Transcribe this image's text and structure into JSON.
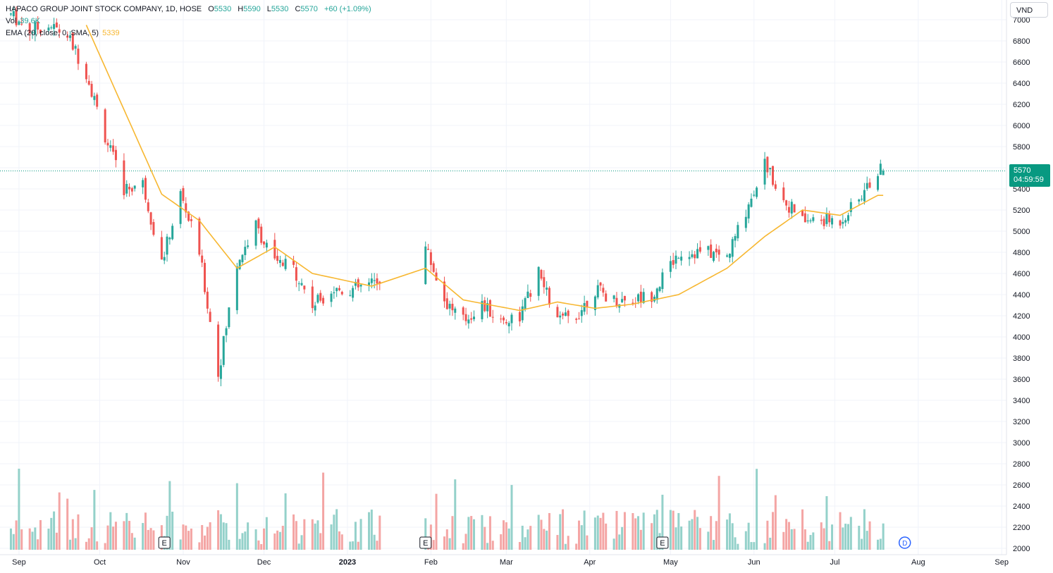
{
  "legend": {
    "symbol_title": "HAPACO GROUP JOINT STOCK COMPANY, 1D, HOSE",
    "o_label": "O",
    "o_value": "5530",
    "h_label": "H",
    "h_value": "5590",
    "l_label": "L",
    "l_value": "5530",
    "c_label": "C",
    "c_value": "5570",
    "change": "+60 (+1.09%)",
    "vol_label": "Vol",
    "vol_value": "39.6K",
    "ema_label": "EMA (20, close, 0, SMA, 5)",
    "ema_value": "5339"
  },
  "currency_button": "VND",
  "last_price": {
    "price": "5570",
    "countdown": "04:59:59"
  },
  "event_markers": [
    "E",
    "E",
    "E"
  ],
  "dividend_marker": "D",
  "colors": {
    "up": "#26a69a",
    "down": "#ef5350",
    "ema": "#f7b731",
    "vol_up": "#94d1ca",
    "vol_down": "#f4a5a4",
    "tag": "#089981"
  },
  "chart_data": {
    "type": "candlestick",
    "y_axis_ticks": [
      2000,
      2200,
      2400,
      2600,
      2800,
      3000,
      3200,
      3400,
      3600,
      3800,
      4000,
      4200,
      4400,
      4600,
      4800,
      5000,
      5200,
      5400,
      5600,
      5800,
      6000,
      6200,
      6400,
      6600,
      6800,
      7000
    ],
    "x_axis_labels": [
      "Sep",
      "Oct",
      "Nov",
      "Dec",
      "2023",
      "Feb",
      "Mar",
      "Apr",
      "May",
      "Jun",
      "Jul",
      "Aug",
      "Sep"
    ],
    "ylim": [
      1960,
      7110
    ],
    "grid": true,
    "price_series_approx": [
      [
        "2022-08-29",
        7050
      ],
      [
        "2022-09-05",
        6900
      ],
      [
        "2022-09-12",
        6950
      ],
      [
        "2022-09-19",
        6850
      ],
      [
        "2022-09-26",
        6500
      ],
      [
        "2022-10-03",
        5900
      ],
      [
        "2022-10-10",
        5400
      ],
      [
        "2022-10-17",
        5450
      ],
      [
        "2022-10-24",
        4700
      ],
      [
        "2022-10-31",
        5350
      ],
      [
        "2022-11-07",
        4800
      ],
      [
        "2022-11-14",
        3650
      ],
      [
        "2022-11-21",
        4700
      ],
      [
        "2022-11-28",
        5050
      ],
      [
        "2022-12-05",
        4700
      ],
      [
        "2022-12-12",
        4650
      ],
      [
        "2022-12-19",
        4300
      ],
      [
        "2022-12-26",
        4450
      ],
      [
        "2023-01-03",
        4450
      ],
      [
        "2023-01-10",
        4500
      ],
      [
        "2023-01-30",
        4850
      ],
      [
        "2023-02-06",
        4350
      ],
      [
        "2023-02-13",
        4150
      ],
      [
        "2023-02-20",
        4300
      ],
      [
        "2023-02-27",
        4150
      ],
      [
        "2023-03-06",
        4200
      ],
      [
        "2023-03-13",
        4600
      ],
      [
        "2023-03-20",
        4150
      ],
      [
        "2023-03-27",
        4200
      ],
      [
        "2023-04-03",
        4450
      ],
      [
        "2023-04-10",
        4350
      ],
      [
        "2023-04-17",
        4350
      ],
      [
        "2023-04-24",
        4400
      ],
      [
        "2023-05-04",
        4800
      ],
      [
        "2023-05-15",
        4800
      ],
      [
        "2023-05-22",
        4750
      ],
      [
        "2023-05-29",
        5200
      ],
      [
        "2023-06-05",
        5650
      ],
      [
        "2023-06-12",
        5300
      ],
      [
        "2023-06-19",
        5100
      ],
      [
        "2023-06-26",
        5100
      ],
      [
        "2023-07-03",
        5100
      ],
      [
        "2023-07-10",
        5300
      ],
      [
        "2023-07-17",
        5570
      ]
    ],
    "ema_series_approx": [
      [
        "2022-09-26",
        6950
      ],
      [
        "2022-10-10",
        6150
      ],
      [
        "2022-10-24",
        5350
      ],
      [
        "2022-11-07",
        5100
      ],
      [
        "2022-11-21",
        4650
      ],
      [
        "2022-12-05",
        4850
      ],
      [
        "2022-12-19",
        4600
      ],
      [
        "2023-01-10",
        4480
      ],
      [
        "2023-01-30",
        4650
      ],
      [
        "2023-02-13",
        4350
      ],
      [
        "2023-03-06",
        4250
      ],
      [
        "2023-03-20",
        4330
      ],
      [
        "2023-04-03",
        4270
      ],
      [
        "2023-04-17",
        4310
      ],
      [
        "2023-05-04",
        4400
      ],
      [
        "2023-05-22",
        4650
      ],
      [
        "2023-06-05",
        4950
      ],
      [
        "2023-06-19",
        5200
      ],
      [
        "2023-07-03",
        5150
      ],
      [
        "2023-07-17",
        5339
      ]
    ]
  }
}
